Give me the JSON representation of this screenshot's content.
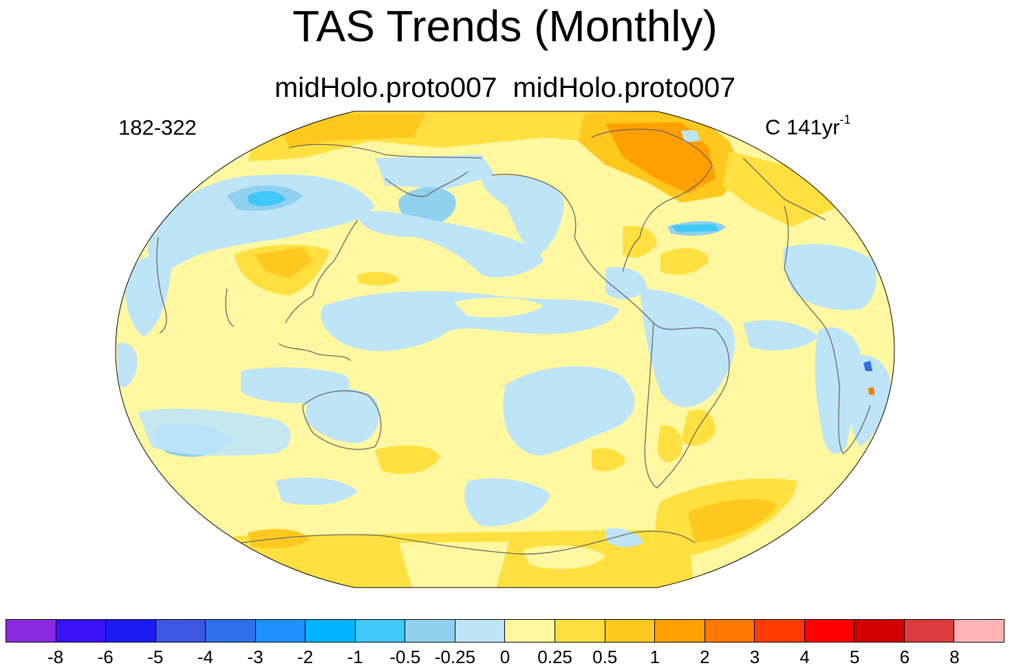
{
  "title": "TAS Trends (Monthly)",
  "subtitle": "midHolo.proto007  midHolo.proto007",
  "left_label": "182-322",
  "right_label": "C 141yr",
  "right_label_exp": "-1",
  "colorbar": {
    "colors": [
      "#8a2be2",
      "#3b12f5",
      "#1c1cf0",
      "#3c58e0",
      "#2e6ee8",
      "#1e90ff",
      "#00b4ff",
      "#40c8f8",
      "#90d0f0",
      "#bee4f8",
      "#fff8a0",
      "#ffe040",
      "#ffc81e",
      "#ffa000",
      "#ff7800",
      "#ff3c00",
      "#ff0000",
      "#d40000",
      "#dc3c3c",
      "#ffb4b4"
    ],
    "labels": [
      "-8",
      "-6",
      "-5",
      "-4",
      "-3",
      "-2",
      "-1",
      "-0.5",
      "-0.25",
      "0",
      "0.25",
      "0.5",
      "1",
      "2",
      "3",
      "4",
      "5",
      "6",
      "8"
    ]
  },
  "map": {
    "projection": "robinson",
    "center_longitude": 180,
    "background_color": "#fff8a0",
    "coastline_color": "#666666"
  }
}
